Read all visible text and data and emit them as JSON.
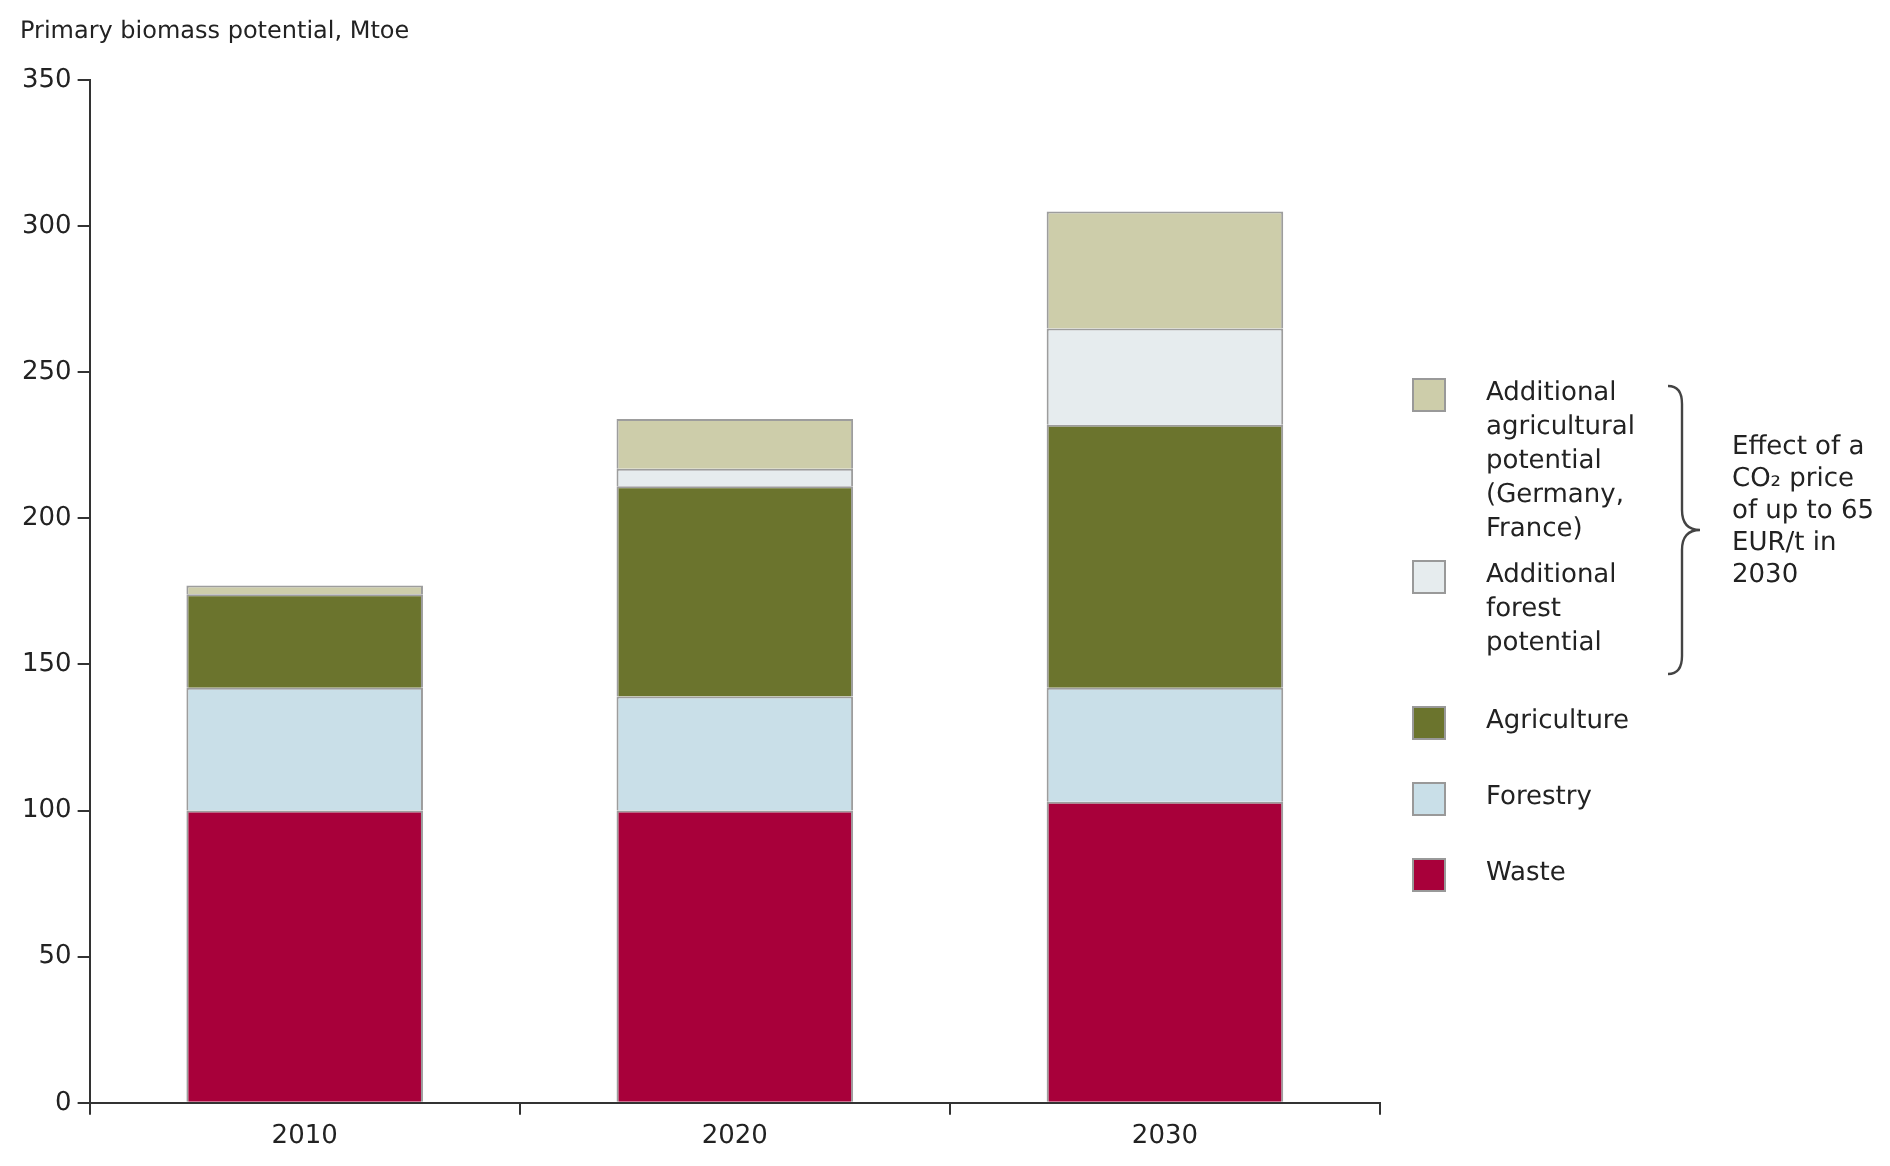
{
  "chart_data": {
    "type": "bar",
    "stacked": true,
    "ylabel": "Primary biomass potential, Mtoe",
    "categories": [
      "2010",
      "2020",
      "2030"
    ],
    "series": [
      {
        "name": "Waste",
        "color": "#a8003a",
        "values": [
          100,
          100,
          103
        ]
      },
      {
        "name": "Forestry",
        "color": "#c9dfe8",
        "values": [
          42,
          39,
          39
        ]
      },
      {
        "name": "Agriculture",
        "color": "#6b742d",
        "values": [
          32,
          72,
          90
        ]
      },
      {
        "name": "Additional forest potential",
        "color": "#e6ecee",
        "values": [
          0,
          6,
          33
        ]
      },
      {
        "name": "Additional agricultural potential (Germany, France)",
        "color": "#cdcdaa",
        "values": [
          3,
          17,
          40
        ]
      }
    ],
    "ylim": [
      0,
      350
    ],
    "yticks": [
      0,
      50,
      100,
      150,
      200,
      250,
      300,
      350
    ],
    "grid": false,
    "legend": "right",
    "annotations": [
      "Effect of a CO₂ price of up to 65 EUR/t in 2030"
    ]
  }
}
